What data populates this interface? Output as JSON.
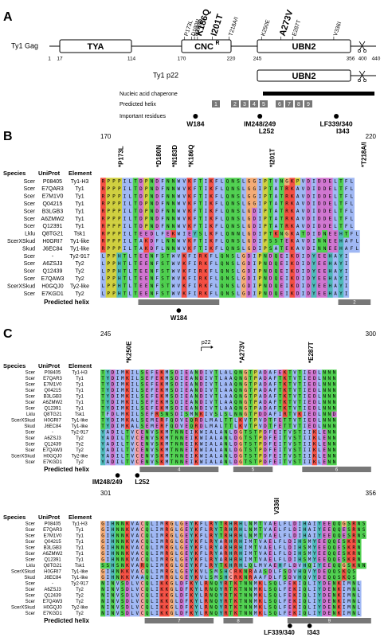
{
  "panel_a": {
    "letter": "A",
    "gag_label": "Ty1 Gag",
    "domains": [
      "TYA",
      "UBN2"
    ],
    "cnc": {
      "text": "CNC",
      "sup": "R"
    },
    "ticks": [
      "1",
      "17",
      "114",
      "170",
      "220",
      "245",
      "356",
      "400",
      "440"
    ],
    "mutations": [
      "P173L",
      "D180N",
      "N183D",
      "K186Q",
      "I201T",
      "T218A/I",
      "K250E",
      "A273V",
      "E287T",
      "V336I"
    ],
    "p22_label": "Ty1 p22",
    "p22_domain": "UBN2",
    "chaperone": "Nucleic acid chaperone",
    "helix_label": "Predicted helix",
    "helices": [
      "1",
      "2",
      "3",
      "4",
      "5",
      "6",
      "7",
      "8",
      "9"
    ],
    "residues_label": "Important residues",
    "residues": [
      "W184",
      "IM248/249",
      "L252",
      "LF339/340",
      "I343"
    ]
  },
  "columns": {
    "species": "Species",
    "uniprot": "UniProt",
    "element": "Element"
  },
  "rows": [
    {
      "species": "Scer",
      "uniprot": "P08405",
      "element": "Ty1-H3"
    },
    {
      "species": "Scer",
      "uniprot": "E7QAR3",
      "element": "Ty1"
    },
    {
      "species": "Scer",
      "uniprot": "E7M1V0",
      "element": "Ty1"
    },
    {
      "species": "Scer",
      "uniprot": "Q04215",
      "element": "Ty1"
    },
    {
      "species": "Scer",
      "uniprot": "B3LGB3",
      "element": "Ty1"
    },
    {
      "species": "Scer",
      "uniprot": "A6ZMW2",
      "element": "Ty1"
    },
    {
      "species": "Scer",
      "uniprot": "Q12391",
      "element": "Ty1"
    },
    {
      "species": "Lklu",
      "uniprot": "Q8TG21",
      "element": "Tsk1"
    },
    {
      "species": "ScerXSkud",
      "uniprot": "H0GRI7",
      "element": "Ty1-like"
    },
    {
      "species": "Skud",
      "uniprot": "J6EC84",
      "element": "Ty1-like"
    },
    {
      "species": "Scer",
      "uniprot": "-",
      "element": "Ty2-917"
    },
    {
      "species": "Scer",
      "uniprot": "A6ZSJ3",
      "element": "Ty2"
    },
    {
      "species": "Scer",
      "uniprot": "Q12439",
      "element": "Ty2"
    },
    {
      "species": "Scer",
      "uniprot": "E7QAW3",
      "element": "Ty2"
    },
    {
      "species": "ScerXSkud",
      "uniprot": "H0GQJ0",
      "element": "Ty2-like"
    },
    {
      "species": "Scer",
      "uniprot": "E7KGD1",
      "element": "Ty2"
    }
  ],
  "helix_label": "Predicted helix",
  "panel_b": {
    "letter": "B"
  },
  "panel_c": {
    "letter": "C"
  },
  "blocks": [
    {
      "start": "170",
      "end": "220",
      "mutations": [
        "*P173L",
        "*D180N",
        "*N183D",
        "*K186Q",
        "*I201T",
        "*T218A/I"
      ],
      "helices": [
        "2"
      ],
      "residues": [
        "W184"
      ],
      "sequences": [
        "RPPPILTDPNDFNNWVKFTIKFLQNSLGGIPTVNGKPVDIDDELTFL",
        "RPPPILTDPNDFNNWVKFTIKFLQNSLGGIPTATRKAVDIDDELTFL",
        "RPPPILTDPNDFNNWVKFTIKFLQNSLGGIPTATRKAVDIDDELTFL",
        "RPPPILTDPNDFNNWVKFTIKFLQNSLGGIPTATRKAVDIDDELTFL",
        "RPPPILTDPNDFNNWVKFTIKFLQNSLGDIPTATRKAVDIDDELTFL",
        "RPPPILTDPNDFNNWVKFTIKFLQNSLGDIPTATRKAVDIDDELTFL",
        "RPPPILTDPNDFNNWVKFTIKFLQNSLGDIPTATRKAVDIDDELTFL",
        "RPPPILTEEDLFEKWIEYSLKFLQNNLGDIPTKNGKATDIDNEEHTFL",
        "RPPPILTAKDFLNNWVKFTIKFLQNSLGDIPSSTEKAVDINNEEHAFL",
        "RPPPILTAKDFLNNWVKFTIKFLQNSLGDIPSATEKAVDINNEEHAFL",
        "LPPHTLTEENFSTWVKFIRKFLQNSLGDIPNDQEIKDIDYEEHAYI",
        "LPPHTLTEENFSTWVKFIRKFLQNSLGDIPNDQEIKDIDYEEHAYI",
        "LPPHTLTEENFSTWVKFIRKFLQNSLGDIPNDQEIKDIDYEEHAYI",
        "LPPHTLTEENFSTWVKFIRKFLQNSLGDIPNDQEIKDIDYEEHAYI",
        "LPPHTLTEENFSTWVKFIRKFLQNSLGDIPNDQEIKDIDYEEHAYI",
        "LPPHTLTEENFSTWVKFIRKFLQNSLGDIPNDQEIKDIDYEEHAYI"
      ]
    },
    {
      "start": "245",
      "end": "300",
      "marker": "p22",
      "mutations": [
        "*K250E",
        "*A273V",
        "*E287T"
      ],
      "helices": [
        "4",
        "5",
        "6"
      ],
      "residues": [
        "IM248/249",
        "L252"
      ],
      "sequences": [
        "TYDIMKILSEFEKMSDIEANDIVTLALQNGTPADAFEKTVTIEDLNNN",
        "TYDIMKILSEFEKMSDIEANDIVTLAAQNGTPADAFTKTVTIEDLNNN",
        "TYDIMKILSEFEKMSDIEANDIVTLAAQNGTPADAFTKTVTIEDLNNN",
        "TYDIMKILSEFEKMSDIEANDIVTLAAQNGTPADAFTKTVTIEDLNNN",
        "TYDIMKILSEFEKMSDIEANDIVTLAAQNGTPADAFTKTVTIEDLNNN",
        "TYDIMKILSEFEKMSDIEANDIVTLAAQNGTPADAFTKTVTIEDLNNN",
        "TYDIMKILSEFEKMSDIEANDIVTLAAQNGTPADAFTKTVTIEDLNNN",
        "TFDLMKILSEFRSNSDISMNKIVSLSLNNGTPDDAFIRTVKIEDLNND",
        "TYDIMKALSEMERFQDVEQRDLMALTTLKVTPVDTFETTVTIEDLNNN",
        "TYDIMKALSEMERFQDVEQRDLMALTTLKVTPVDTFETTVTIEDLNNN",
        "YADILTVCENVSKMTNNEIKWIALANLDGTSTPDFEITVSTIIKLENN",
        "YADILTVCENVSKMTNNEIKWIALANLDGTSTPDFEITVSTIIKLENN",
        "YADILTVCENVSKMTNNEIKWIALANLDGTSTPDFEITVSTIIKLENN",
        "YADILTVCENVSKMTNNEIKWIALANLDGTSTPDFEITVSTIIKLENN",
        "YADILTVCENVSKMTNNEIKWIALANLDGTSTPDFEITVSTIIKLENN",
        "YADILTVCENVSKMTNNEIKWIALANLDGTSTPDFEITVSTIIKLENN"
      ]
    },
    {
      "start": "301",
      "end": "356",
      "mutations": [
        "V336I"
      ],
      "helices": [
        "7",
        "8",
        "9"
      ],
      "residues": [
        "LF339/340",
        "I343"
      ],
      "sequences": [
        "GIHNNKVACQLIMRGLGEYKFLRYTRHRHLNMTVAELFLDIHAIYEEQQGSRNS",
        "GIHNNKVACQLIMRGLGEYKFLRYTRHRHLNMTVAELFLDIHAIYEEQQESRNS",
        "GIHNNKVACQLIMRGLGEYKFLRYTRHRHLNMTVAELFLDIHAIYEEQQESRNS",
        "GIHNNKVACQLIMRGLGEYKFLRYARHRHIMTVAELFLDIHSMYEEQQESKRN",
        "GIHNNKVACQLIMRGLGEYKFLRYARHRHIMTVAELFLDIHSMYEEQQESKRN",
        "GIHNNKVACQLIMRGLGEYKFLRYARHRHIMTVAELFLDIHSMYEEQQESKRN",
        "GIHNNKVACQLIMRGLGEYKFLRYARHRHIMTVAELFLDIHSMYEEQQESKRN",
        "SSHSNKVARQLIMKGLGEYKFLRYTKHRHLQLMVAEHFLDVHQIYEEQQGSKNN",
        "GIHNKKVACQLIMRGLGEYKVLSMSHCRKNRAASDLFSDVHQVYDEQQSKQS",
        "GIHNKKVAAQLIMRGLGEYKVLSMSHCRKNRAAFDLFSDVHQVYDEQQSKQS",
        "NINVSDLVCQLIKKGLDFKYLRNQYRTKTNNMKLSQLFEKIQLIYDENKIMNL",
        "NINVSDLVCQLIKKGLDFKYLRNQYRTKTNNMKLSQLFEKIQLIYDENKIMNL",
        "NINVSDLVCQLIKKGLDFKYLRNQYRTKTNNMKLSQLFEKIQLIYDENKIMNL",
        "NINVSDLVCQLIKKGLDFKYLRNQYRTKTNNMKLSQLFEKIQLIYDENKIMNL",
        "NINVSDLVCQLIKKGLDFKYLRNQYRTKTNNMKLSQLFEKIQLIYDENKIMNL",
        "NINVSDLVCQLIKKGLDFKYLRNQYRTKTNNMKLSQLFEKIQLIYDENKIMNL"
      ]
    }
  ]
}
